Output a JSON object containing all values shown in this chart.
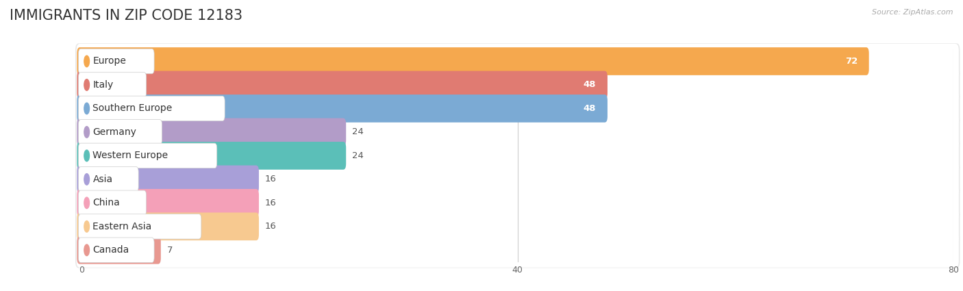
{
  "title": "IMMIGRANTS IN ZIP CODE 12183",
  "source_text": "Source: ZipAtlas.com",
  "categories": [
    "Europe",
    "Italy",
    "Southern Europe",
    "Germany",
    "Western Europe",
    "Asia",
    "China",
    "Eastern Asia",
    "Canada"
  ],
  "values": [
    72,
    48,
    48,
    24,
    24,
    16,
    16,
    16,
    7
  ],
  "bar_colors": [
    "#F5A84E",
    "#E07B72",
    "#7BAAD4",
    "#B29CC8",
    "#5BBFB8",
    "#A89FD8",
    "#F4A0B8",
    "#F7C990",
    "#E89890"
  ],
  "background_color": "#ffffff",
  "row_bg_color": "#f0f0f0",
  "row_border_color": "#e0e0e0",
  "xlim_data": [
    -10,
    80
  ],
  "xlim_display": [
    0,
    80
  ],
  "xticks": [
    0,
    40,
    80
  ],
  "title_fontsize": 15,
  "label_fontsize": 10,
  "value_fontsize": 9.5,
  "grid_color": "#cccccc",
  "value_inside_threshold": 48
}
